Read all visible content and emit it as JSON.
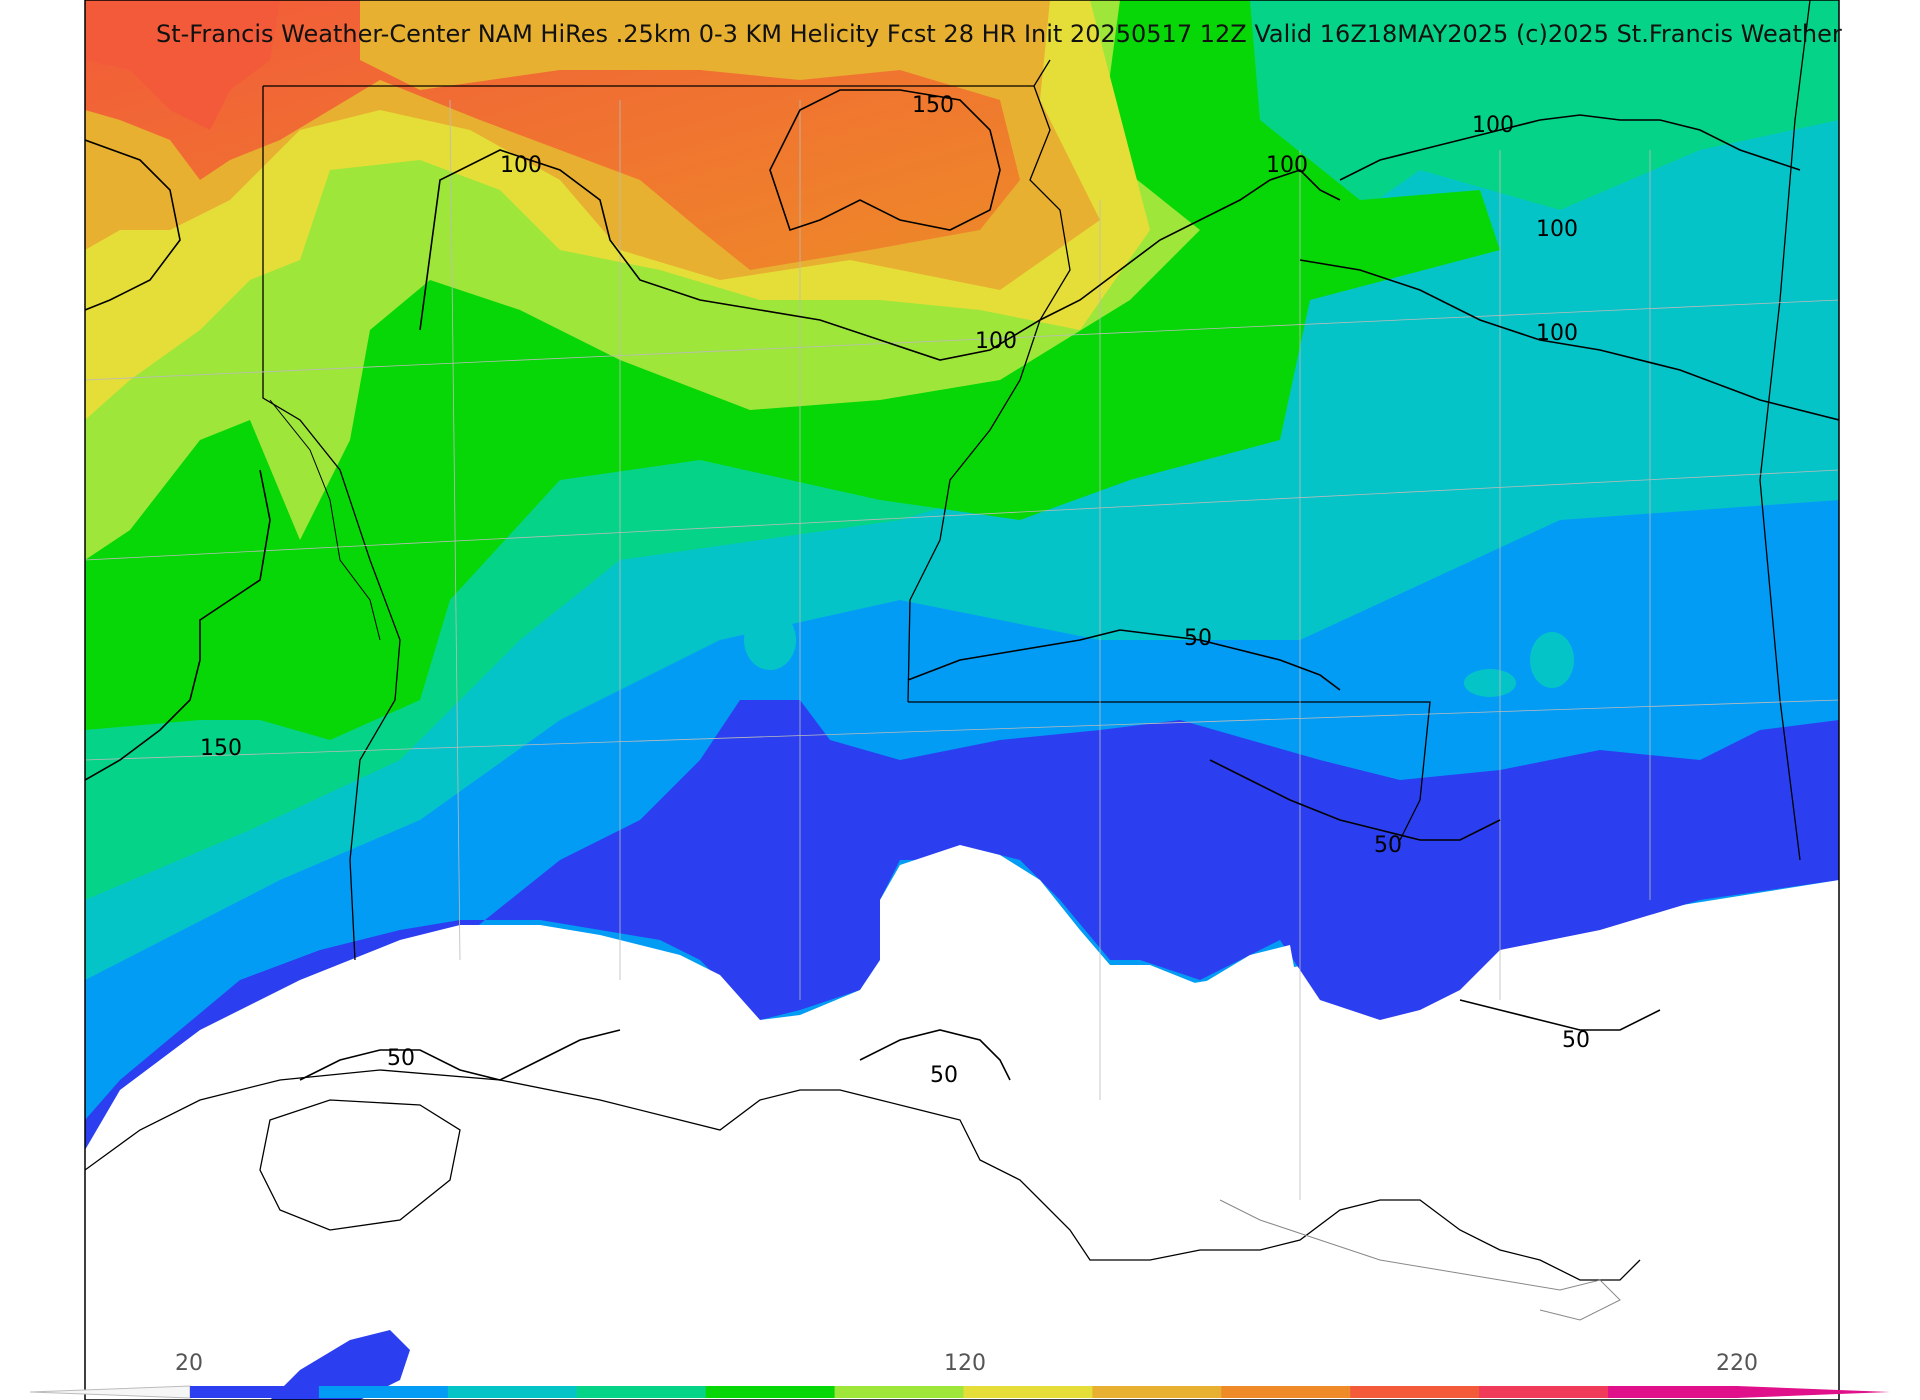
{
  "title": "St-Francis Weather-Center NAM HiRes .25km 0-3 KM Helicity Fcst 28 HR Init 20250517 12Z  Valid 16Z18MAY2025    (c)2025 St.Francis Weather",
  "contour_labels": [
    "150",
    "100",
    "100",
    "100",
    "100",
    "100",
    "100",
    "150",
    "50",
    "50",
    "50",
    "50",
    "50"
  ],
  "colorbar": {
    "tick_labels": [
      "20",
      "120",
      "220"
    ],
    "colors": [
      "#2b3ff0",
      "#039cf5",
      "#05c4c8",
      "#05d488",
      "#07d707",
      "#9ee63a",
      "#e5de38",
      "#e8b030",
      "#ee8a28",
      "#f25a3a",
      "#f03a5a",
      "#e0108a"
    ]
  },
  "field_colors": {
    "blue": "#2b3ff0",
    "sky": "#039cf5",
    "cyan": "#05c4c8",
    "teal_green": "#05d488",
    "green": "#07d707",
    "lime": "#9ee63a",
    "yellow": "#e5de38",
    "gold": "#e8b030",
    "orange": "#ee8a28",
    "red_orange": "#f25a3a"
  }
}
